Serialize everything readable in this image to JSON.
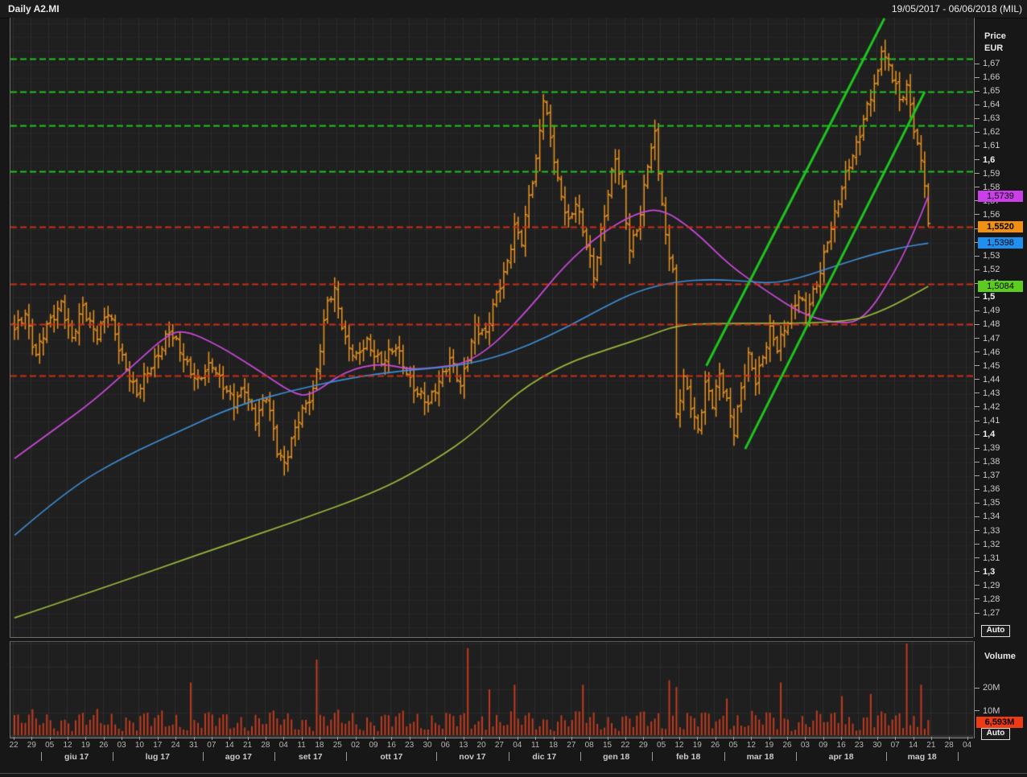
{
  "window": {
    "title": "Daily A2.MI",
    "date_range": "19/05/2017 - 06/06/2018 (MIL)"
  },
  "price_axis": {
    "title_line1": "Price",
    "title_line2": "EUR",
    "auto_label": "Auto",
    "tick_labels": [
      "1,67",
      "1,66",
      "1,65",
      "1,64",
      "1,63",
      "1,62",
      "1,61",
      "1,6",
      "1,59",
      "1,58",
      "1,57",
      "1,56",
      "1,55",
      "1,54",
      "1,53",
      "1,52",
      "1,51",
      "1,5",
      "1,49",
      "1,48",
      "1,47",
      "1,46",
      "1,45",
      "1,44",
      "1,43",
      "1,42",
      "1,41",
      "1,4",
      "1,39",
      "1,38",
      "1,37",
      "1,36",
      "1,35",
      "1,34",
      "1,33",
      "1,32",
      "1,31",
      "1,3",
      "1,29",
      "1,28",
      "1,27"
    ],
    "tick_start": 1.67,
    "tick_step": 0.01,
    "value_labels": [
      {
        "label": "1,5739",
        "value": 1.5739,
        "bg": "#cb3fe8",
        "bold": false,
        "name": "ma-fast-value-label"
      },
      {
        "label": "1,5520",
        "value": 1.552,
        "bg": "#f29111",
        "bold": true,
        "name": "last-price-label"
      },
      {
        "label": "1,5398",
        "value": 1.5398,
        "bg": "#2090f0",
        "bold": false,
        "name": "ma-mid-value-label"
      },
      {
        "label": "1,5084",
        "value": 1.5084,
        "bg": "#5ccd20",
        "bold": false,
        "name": "ma-slow-value-label"
      }
    ]
  },
  "volume_axis": {
    "title": "Volume",
    "auto_label": "Auto",
    "ticks": [
      {
        "label": "20M",
        "value": 20
      },
      {
        "label": "10M",
        "value": 10
      }
    ],
    "last_value": {
      "label": "6,593M",
      "value": 6.593,
      "bg": "#ee3b16"
    }
  },
  "chart_data": {
    "type": "ohlc_bars",
    "symbol": "A2.MI",
    "timeframe": "Daily",
    "currency": "EUR",
    "title": "Daily A2.MI 19/05/2017 - 06/06/2018 (MIL)",
    "ylim": [
      1.253,
      1.704
    ],
    "bar_count": 255,
    "bar_color": "#ec9420",
    "grid": {
      "on": true,
      "v_color": "#2d2d2d",
      "h_color": "#262626",
      "bg": "#1f1f1f"
    },
    "close_anchors": [
      [
        0,
        1.475
      ],
      [
        3,
        1.49
      ],
      [
        6,
        1.458
      ],
      [
        9,
        1.478
      ],
      [
        13,
        1.498
      ],
      [
        16,
        1.468
      ],
      [
        19,
        1.493
      ],
      [
        23,
        1.474
      ],
      [
        26,
        1.488
      ],
      [
        30,
        1.458
      ],
      [
        34,
        1.428
      ],
      [
        38,
        1.452
      ],
      [
        43,
        1.474
      ],
      [
        47,
        1.458
      ],
      [
        51,
        1.438
      ],
      [
        55,
        1.452
      ],
      [
        58,
        1.438
      ],
      [
        61,
        1.421
      ],
      [
        64,
        1.435
      ],
      [
        67,
        1.412
      ],
      [
        70,
        1.427
      ],
      [
        73,
        1.39
      ],
      [
        75,
        1.381
      ],
      [
        79,
        1.41
      ],
      [
        83,
        1.434
      ],
      [
        87,
        1.496
      ],
      [
        89,
        1.503
      ],
      [
        92,
        1.471
      ],
      [
        95,
        1.456
      ],
      [
        98,
        1.466
      ],
      [
        102,
        1.455
      ],
      [
        106,
        1.462
      ],
      [
        109,
        1.447
      ],
      [
        112,
        1.431
      ],
      [
        115,
        1.421
      ],
      [
        118,
        1.441
      ],
      [
        121,
        1.456
      ],
      [
        124,
        1.433
      ],
      [
        126,
        1.458
      ],
      [
        128,
        1.481
      ],
      [
        131,
        1.472
      ],
      [
        134,
        1.502
      ],
      [
        137,
        1.528
      ],
      [
        139,
        1.551
      ],
      [
        141,
        1.539
      ],
      [
        143,
        1.574
      ],
      [
        145,
        1.601
      ],
      [
        147,
        1.647
      ],
      [
        149,
        1.615
      ],
      [
        151,
        1.583
      ],
      [
        154,
        1.557
      ],
      [
        156,
        1.571
      ],
      [
        158,
        1.547
      ],
      [
        161,
        1.516
      ],
      [
        163,
        1.549
      ],
      [
        165,
        1.577
      ],
      [
        167,
        1.601
      ],
      [
        169,
        1.577
      ],
      [
        171,
        1.537
      ],
      [
        174,
        1.561
      ],
      [
        176,
        1.596
      ],
      [
        178,
        1.618
      ],
      [
        181,
        1.546
      ],
      [
        183,
        1.52
      ],
      [
        184,
        1.412
      ],
      [
        186,
        1.44
      ],
      [
        188,
        1.423
      ],
      [
        190,
        1.405
      ],
      [
        192,
        1.437
      ],
      [
        194,
        1.421
      ],
      [
        196,
        1.443
      ],
      [
        198,
        1.427
      ],
      [
        200,
        1.404
      ],
      [
        202,
        1.432
      ],
      [
        204,
        1.456
      ],
      [
        206,
        1.441
      ],
      [
        208,
        1.459
      ],
      [
        210,
        1.476
      ],
      [
        212,
        1.461
      ],
      [
        214,
        1.477
      ],
      [
        216,
        1.492
      ],
      [
        218,
        1.503
      ],
      [
        220,
        1.487
      ],
      [
        222,
        1.502
      ],
      [
        224,
        1.521
      ],
      [
        226,
        1.544
      ],
      [
        228,
        1.559
      ],
      [
        230,
        1.578
      ],
      [
        232,
        1.598
      ],
      [
        234,
        1.613
      ],
      [
        236,
        1.63
      ],
      [
        238,
        1.645
      ],
      [
        240,
        1.662
      ],
      [
        241,
        1.683
      ],
      [
        243,
        1.67
      ],
      [
        245,
        1.655
      ],
      [
        246,
        1.641
      ],
      [
        248,
        1.652
      ],
      [
        250,
        1.625
      ],
      [
        252,
        1.601
      ],
      [
        253,
        1.586
      ],
      [
        254,
        1.552
      ]
    ],
    "resistance_levels": {
      "style": "dashed",
      "color": "#1ec41e",
      "values": [
        1.674,
        1.65,
        1.6255,
        1.592
      ]
    },
    "support_levels": {
      "style": "dashed",
      "color": "#d22b14",
      "values": [
        1.552,
        1.51,
        1.481,
        1.4435
      ]
    },
    "trendlines": {
      "color": "#1ec41e",
      "width": 3,
      "lines": [
        [
          [
            192.3,
            1.4505
          ],
          [
            241.8,
            1.7035
          ]
        ],
        [
          [
            203.1,
            1.39
          ],
          [
            253.0,
            1.65
          ]
        ]
      ]
    },
    "moving_averages": [
      {
        "name": "ma-fast",
        "color": "#cc49dc",
        "last_value": 1.5739,
        "points": [
          [
            0,
            1.383
          ],
          [
            11,
            1.404
          ],
          [
            22,
            1.425
          ],
          [
            33,
            1.451
          ],
          [
            42,
            1.472
          ],
          [
            47,
            1.477
          ],
          [
            57,
            1.465
          ],
          [
            68,
            1.447
          ],
          [
            77,
            1.431
          ],
          [
            82,
            1.428
          ],
          [
            92,
            1.447
          ],
          [
            102,
            1.4525
          ],
          [
            110,
            1.4475
          ],
          [
            118,
            1.4495
          ],
          [
            125,
            1.452
          ],
          [
            133,
            1.465
          ],
          [
            143,
            1.492
          ],
          [
            153,
            1.524
          ],
          [
            163,
            1.547
          ],
          [
            173,
            1.562
          ],
          [
            180,
            1.565
          ],
          [
            189,
            1.549
          ],
          [
            199,
            1.523
          ],
          [
            209,
            1.505
          ],
          [
            219,
            1.488
          ],
          [
            228,
            1.4815
          ],
          [
            236,
            1.483
          ],
          [
            245,
            1.52
          ],
          [
            250,
            1.548
          ],
          [
            254,
            1.5739
          ]
        ]
      },
      {
        "name": "ma-mid",
        "color": "#3d8ed8",
        "last_value": 1.5398,
        "points": [
          [
            0,
            1.327
          ],
          [
            15,
            1.361
          ],
          [
            31,
            1.385
          ],
          [
            46,
            1.403
          ],
          [
            61,
            1.421
          ],
          [
            77,
            1.4325
          ],
          [
            92,
            1.441
          ],
          [
            102,
            1.445
          ],
          [
            112,
            1.448
          ],
          [
            122,
            1.45
          ],
          [
            133,
            1.456
          ],
          [
            143,
            1.4655
          ],
          [
            153,
            1.478
          ],
          [
            163,
            1.492
          ],
          [
            173,
            1.505
          ],
          [
            184,
            1.512
          ],
          [
            194,
            1.5135
          ],
          [
            204,
            1.512
          ],
          [
            211,
            1.5105
          ],
          [
            219,
            1.515
          ],
          [
            229,
            1.524
          ],
          [
            239,
            1.532
          ],
          [
            247,
            1.537
          ],
          [
            254,
            1.5398
          ]
        ]
      },
      {
        "name": "ma-slow",
        "color": "#9ab93c",
        "last_value": 1.5084,
        "points": [
          [
            0,
            1.267
          ],
          [
            26,
            1.29
          ],
          [
            51,
            1.313
          ],
          [
            77,
            1.336
          ],
          [
            102,
            1.36
          ],
          [
            117,
            1.382
          ],
          [
            128,
            1.402
          ],
          [
            140,
            1.432
          ],
          [
            153,
            1.452
          ],
          [
            166,
            1.4635
          ],
          [
            176,
            1.472
          ],
          [
            184,
            1.48
          ],
          [
            194,
            1.4815
          ],
          [
            231,
            1.4815
          ],
          [
            242,
            1.491
          ],
          [
            254,
            1.5084
          ]
        ]
      }
    ],
    "volume": {
      "bar_color": "#c03a1e",
      "ylim": [
        0,
        42
      ],
      "gridlines": [
        10,
        20,
        30,
        40
      ],
      "base_range_millions": [
        4,
        12
      ],
      "spikes": [
        [
          49,
          23
        ],
        [
          84,
          33
        ],
        [
          126,
          38
        ],
        [
          132,
          20
        ],
        [
          139,
          22
        ],
        [
          158,
          22
        ],
        [
          182,
          24
        ],
        [
          184,
          21
        ],
        [
          198,
          16
        ],
        [
          213,
          23
        ],
        [
          230,
          17
        ],
        [
          238,
          18
        ],
        [
          248,
          40
        ],
        [
          252,
          22
        ],
        [
          254,
          6.593
        ]
      ],
      "last_value_millions": 6.593
    },
    "x_axis": {
      "months": [
        {
          "name": "",
          "weeks": [
            "22",
            "29"
          ]
        },
        {
          "name": "giu 17",
          "weeks": [
            "05",
            "12",
            "19",
            "26"
          ]
        },
        {
          "name": "lug 17",
          "weeks": [
            "03",
            "10",
            "17",
            "24",
            "31"
          ]
        },
        {
          "name": "ago 17",
          "weeks": [
            "07",
            "14",
            "21",
            "28"
          ]
        },
        {
          "name": "set 17",
          "weeks": [
            "04",
            "11",
            "18",
            "25"
          ]
        },
        {
          "name": "ott 17",
          "weeks": [
            "02",
            "09",
            "16",
            "23",
            "30"
          ]
        },
        {
          "name": "nov 17",
          "weeks": [
            "06",
            "13",
            "20",
            "27"
          ]
        },
        {
          "name": "dic 17",
          "weeks": [
            "04",
            "11",
            "18",
            "27"
          ]
        },
        {
          "name": "gen 18",
          "weeks": [
            "08",
            "15",
            "22",
            "29"
          ]
        },
        {
          "name": "feb 18",
          "weeks": [
            "05",
            "12",
            "19",
            "26"
          ]
        },
        {
          "name": "mar 18",
          "weeks": [
            "05",
            "12",
            "19",
            "26"
          ]
        },
        {
          "name": "apr 18",
          "weeks": [
            "03",
            "09",
            "16",
            "23",
            "30"
          ]
        },
        {
          "name": "mag 18",
          "weeks": [
            "07",
            "14",
            "21",
            "28"
          ]
        },
        {
          "name": "",
          "weeks": [
            "04"
          ]
        }
      ]
    }
  }
}
